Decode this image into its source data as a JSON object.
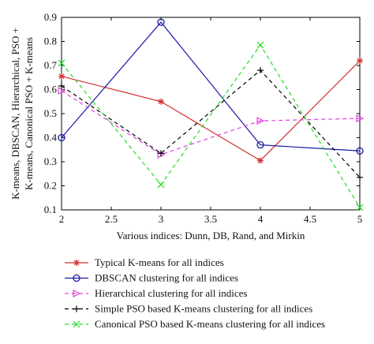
{
  "chart_data": {
    "type": "line",
    "title": "",
    "xlabel": "Various indices: Dunn, DB, Rand, and Mirkin",
    "ylabel": [
      "K-means, DBSCAN, Hierarchical, PSO +",
      "K-means, Canonical PSO + K-means"
    ],
    "x": [
      2,
      3,
      4,
      5
    ],
    "xlim": [
      2,
      5
    ],
    "ylim": [
      0.1,
      0.9
    ],
    "xticks": [
      "2",
      "2.5",
      "3",
      "3.5",
      "4",
      "4.5",
      "5"
    ],
    "yticks": [
      "0.1",
      "0.2",
      "0.3",
      "0.4",
      "0.5",
      "0.6",
      "0.7",
      "0.8",
      "0.9"
    ],
    "grid": false,
    "legend_position": "below",
    "series": [
      {
        "name": "Typical K-means for all indices",
        "color": "#d32f2f",
        "marker": "star",
        "dash": "solid",
        "values": [
          0.655,
          0.55,
          0.305,
          0.72
        ]
      },
      {
        "name": "DBSCAN clustering for all indices",
        "color": "#1a1aa6",
        "marker": "circle",
        "dash": "solid",
        "values": [
          0.4,
          0.88,
          0.37,
          0.345
        ]
      },
      {
        "name": "Hierarchical clustering for all indices",
        "color": "#e040e0",
        "marker": "triangle-right",
        "dash": "dashed",
        "values": [
          0.595,
          0.33,
          0.47,
          0.48
        ]
      },
      {
        "name": "Simple PSO based K-means clustering for all indices",
        "color": "#000000",
        "marker": "plus",
        "dash": "dashed",
        "values": [
          0.615,
          0.335,
          0.68,
          0.235
        ]
      },
      {
        "name": "Canonical PSO based K-means clustering for all indices",
        "color": "#22dd22",
        "marker": "x",
        "dash": "dashed",
        "values": [
          0.71,
          0.205,
          0.785,
          0.11
        ]
      }
    ]
  }
}
